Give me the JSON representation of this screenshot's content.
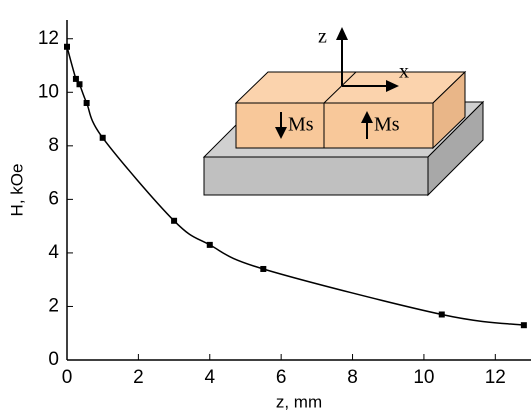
{
  "chart_data": {
    "type": "scatter",
    "xlabel": "z, mm",
    "ylabel": "H, kOe",
    "x": [
      0,
      0.25,
      0.35,
      0.55,
      1.0,
      3.0,
      4.0,
      5.5,
      10.5,
      12.8
    ],
    "series": [
      {
        "color": "#000000",
        "values": [
          11.7,
          10.5,
          10.3,
          9.6,
          8.3,
          5.2,
          4.3,
          3.4,
          1.7,
          1.3
        ]
      }
    ],
    "xlim": [
      0,
      13
    ],
    "ylim": [
      0,
      12.7
    ],
    "xticks": [
      0,
      2,
      4,
      6,
      8,
      10,
      12
    ],
    "yticks": [
      0,
      2,
      4,
      6,
      8,
      10,
      12
    ],
    "grid": false,
    "annotations": [
      "z",
      "x",
      "Ms",
      "Ms"
    ]
  }
}
